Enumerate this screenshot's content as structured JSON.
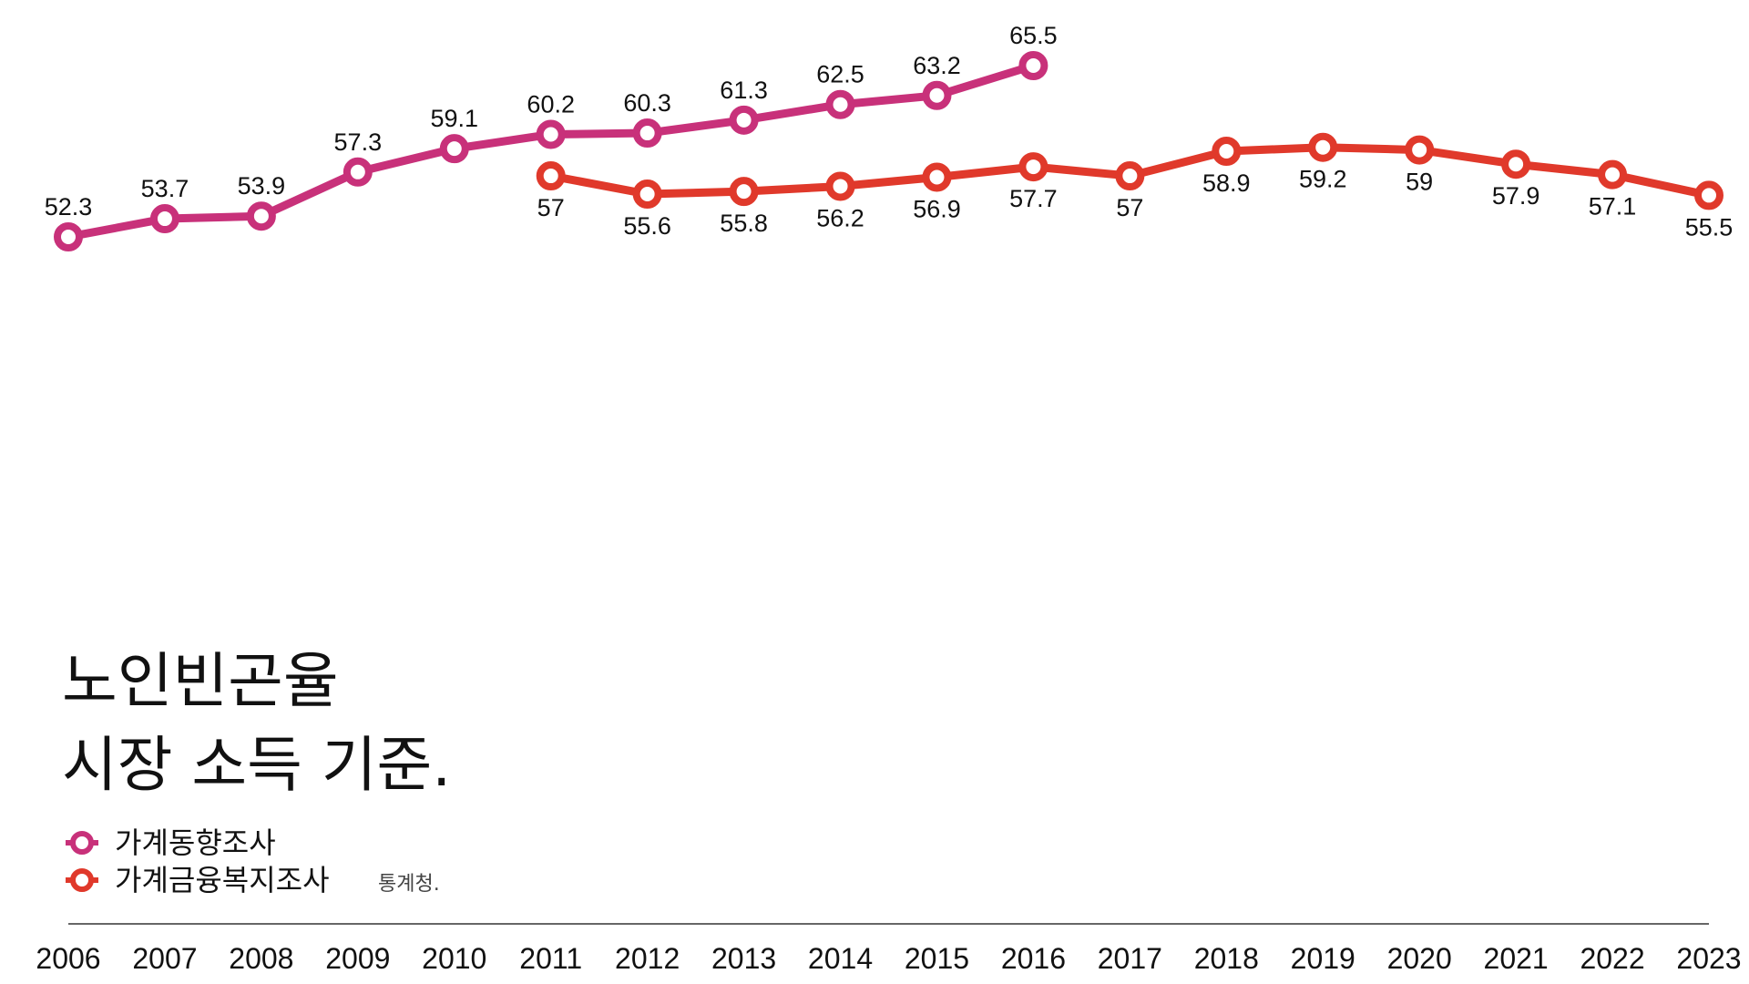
{
  "chart_data": {
    "type": "line",
    "title_lines": [
      "노인빈곤율",
      "시장 소득 기준."
    ],
    "source": "통계청.",
    "x": [
      2006,
      2007,
      2008,
      2009,
      2010,
      2011,
      2012,
      2013,
      2014,
      2015,
      2016,
      2017,
      2018,
      2019,
      2020,
      2021,
      2022,
      2023
    ],
    "x_tick_labels": [
      "2006",
      "2007",
      "2008",
      "2009",
      "2010",
      "2011",
      "2012",
      "2013",
      "2014",
      "2015",
      "2016",
      "2017",
      "2018",
      "2019",
      "2020",
      "2021",
      "2022",
      "2023"
    ],
    "ylim": [
      50,
      66
    ],
    "grid": false,
    "legend_position": "bottom-left",
    "series": [
      {
        "name": "가계동향조사",
        "color": "#c8317a",
        "x": [
          2006,
          2007,
          2008,
          2009,
          2010,
          2011,
          2012,
          2013,
          2014,
          2015,
          2016
        ],
        "values": [
          52.3,
          53.7,
          53.9,
          57.3,
          59.1,
          60.2,
          60.3,
          61.3,
          62.5,
          63.2,
          65.5
        ],
        "labels": [
          "52.3",
          "53.7",
          "53.9",
          "57.3",
          "59.1",
          "60.2",
          "60.3",
          "61.3",
          "62.5",
          "63.2",
          "65.5"
        ],
        "label_side": "above"
      },
      {
        "name": "가계금융복지조사",
        "color": "#e0392b",
        "x": [
          2011,
          2012,
          2013,
          2014,
          2015,
          2016,
          2017,
          2018,
          2019,
          2020,
          2021,
          2022,
          2023
        ],
        "values": [
          57,
          55.6,
          55.8,
          56.2,
          56.9,
          57.7,
          57,
          58.9,
          59.2,
          59,
          57.9,
          57.1,
          55.5
        ],
        "labels": [
          "57",
          "55.6",
          "55.8",
          "56.2",
          "56.9",
          "57.7",
          "57",
          "58.9",
          "59.2",
          "59",
          "57.9",
          "57.1",
          "55.5"
        ],
        "label_side": "below"
      }
    ]
  }
}
